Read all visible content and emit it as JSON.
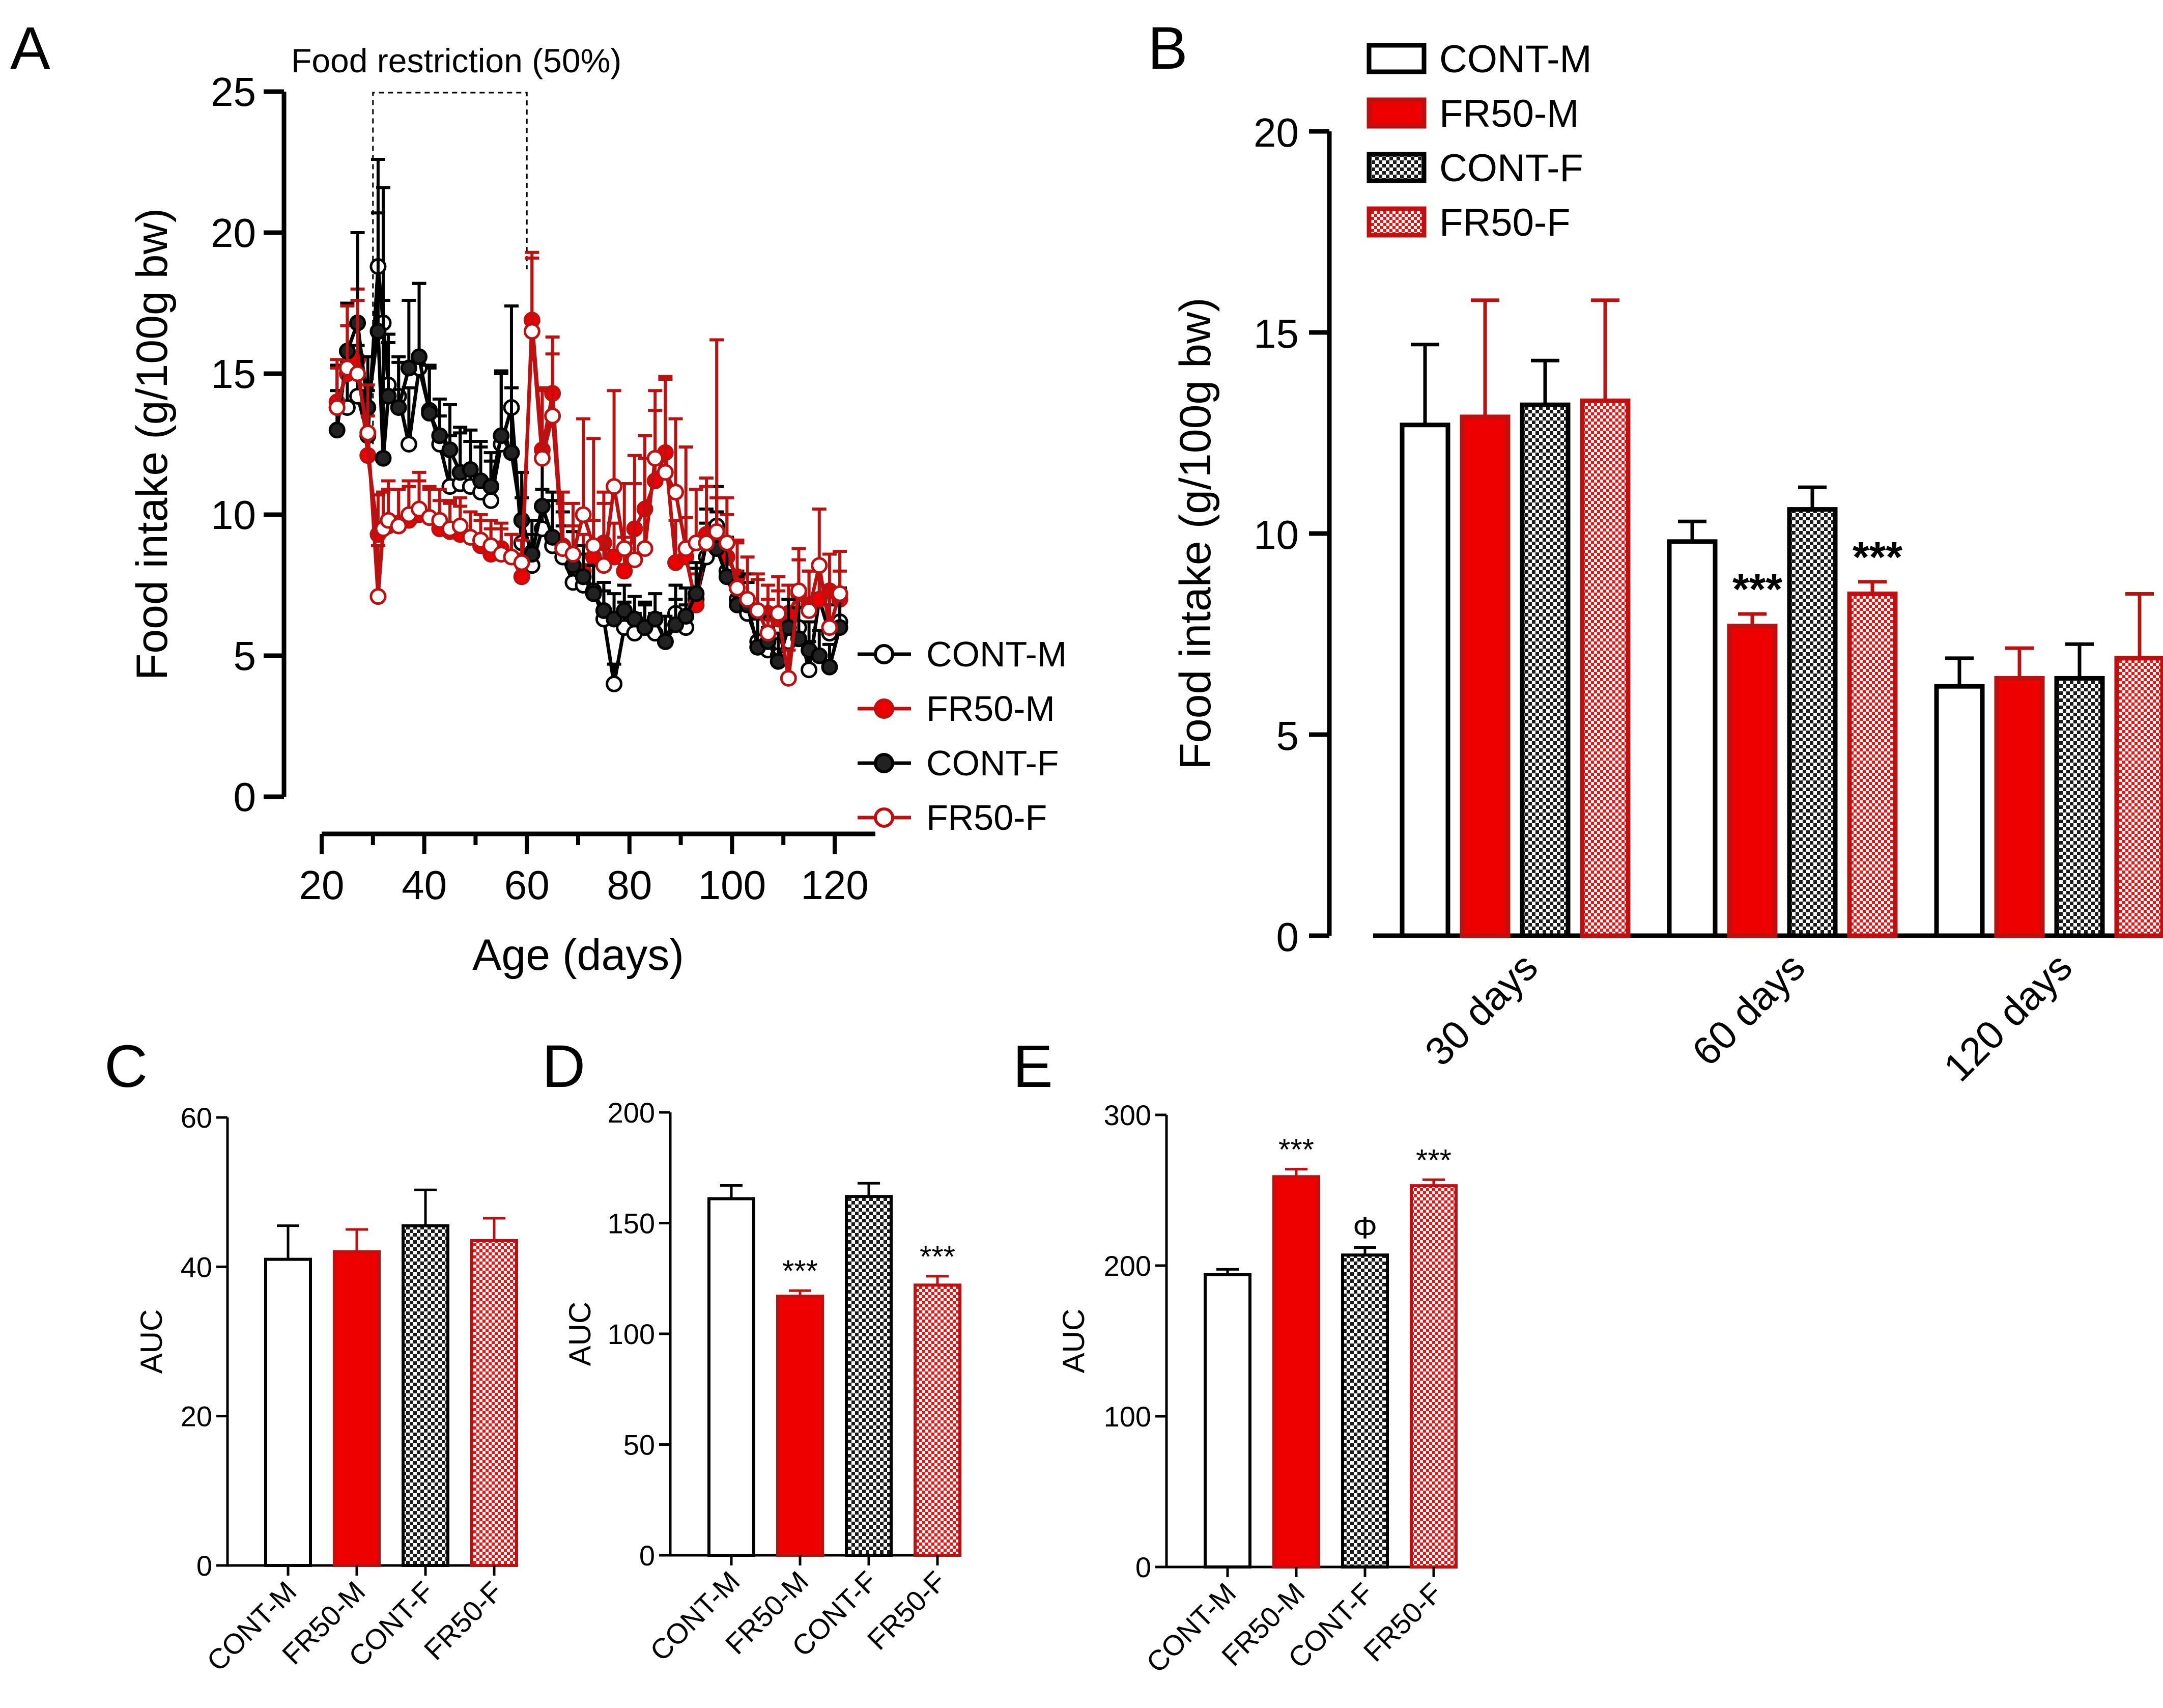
{
  "colors": {
    "black": "#000000",
    "white": "#ffffff",
    "red": "#ee0000",
    "darkred": "#bb1111",
    "check_dark": "#1a1a1a",
    "check_light": "#ffffff",
    "check_red": "#ee1111",
    "check_red_light": "#ffffff"
  },
  "groups": [
    "CONT-M",
    "FR50-M",
    "CONT-F",
    "FR50-F"
  ],
  "chart_data": [
    {
      "panel": "A",
      "type": "line",
      "ylabel": "Food intake (g/100g bw)",
      "xlabel": "Age (days)",
      "ylim": [
        0,
        25
      ],
      "yticks": [
        0,
        5,
        10,
        15,
        20,
        25
      ],
      "xlim": [
        20,
        125
      ],
      "xticks": [
        20,
        40,
        60,
        80,
        100,
        120
      ],
      "annotation": "Food restriction (50%)",
      "restriction_window": [
        30,
        60
      ],
      "legend": [
        "CONT-M",
        "FR50-M",
        "CONT-F",
        "FR50-F"
      ],
      "x": [
        23,
        25,
        27,
        29,
        31,
        32,
        33,
        35,
        37,
        39,
        41,
        43,
        45,
        47,
        49,
        51,
        53,
        55,
        57,
        59,
        61,
        63,
        65,
        67,
        69,
        71,
        73,
        75,
        77,
        79,
        81,
        83,
        85,
        87,
        89,
        91,
        93,
        95,
        97,
        99,
        101,
        103,
        105,
        107,
        109,
        111,
        113,
        115,
        117,
        119,
        121
      ],
      "series": [
        {
          "name": "CONT-M",
          "values": [
            13.8,
            13.8,
            14.2,
            12.8,
            18.8,
            16.8,
            14.6,
            14.2,
            12.5,
            15.2,
            13.7,
            12.5,
            11.0,
            11.1,
            11.0,
            10.8,
            10.5,
            12.5,
            13.8,
            9.0,
            8.2,
            9.5,
            8.9,
            8.5,
            7.6,
            7.5,
            7.3,
            6.3,
            4.0,
            6.0,
            5.8,
            6.0,
            5.8,
            5.5,
            6.5,
            6.0,
            7.0,
            8.5,
            9.6,
            8.0,
            7.0,
            6.5,
            5.5,
            5.2,
            5.0,
            5.5,
            6.0,
            4.5,
            7.0,
            5.8,
            6.2
          ],
          "errors": [
            1.5,
            1.6,
            1.8,
            1.6,
            3.8,
            4.8,
            1.8,
            1.4,
            2.0,
            3.0,
            1.5,
            1.0,
            1.8,
            1.8,
            1.6,
            1.6,
            1.4,
            2.5,
            3.6,
            1.6,
            1.1,
            1.4,
            1.6,
            1.1,
            1.1,
            1.1,
            0.9,
            1.0,
            0.7,
            0.9,
            0.7,
            0.8,
            0.7,
            0.9,
            1.0,
            0.8,
            1.1,
            1.2,
            1.4,
            1.2,
            1.0,
            1.1,
            1.0,
            0.8,
            0.8,
            0.9,
            1.1,
            1.0,
            1.2,
            1.0,
            1.2
          ]
        },
        {
          "name": "FR50-M",
          "values": [
            14.0,
            15.0,
            15.5,
            12.1,
            9.3,
            9.5,
            9.6,
            9.7,
            9.8,
            10.0,
            9.9,
            9.5,
            9.4,
            9.3,
            9.2,
            8.9,
            8.6,
            8.8,
            8.5,
            7.8,
            16.9,
            12.3,
            14.3,
            8.9,
            8.2,
            8.0,
            8.5,
            9.0,
            8.5,
            8.0,
            9.5,
            10.2,
            11.2,
            12.2,
            8.3,
            8.5,
            6.8,
            9.3,
            9.0,
            8.5,
            7.8,
            6.8,
            6.6,
            6.5,
            6.3,
            6.5,
            7.2,
            6.8,
            7.0,
            7.3,
            7.0
          ],
          "errors": [
            1.5,
            1.7,
            2.5,
            1.4,
            1.4,
            1.3,
            1.3,
            1.2,
            1.2,
            1.2,
            1.0,
            1.0,
            1.0,
            1.0,
            0.9,
            0.9,
            0.9,
            0.9,
            0.8,
            0.8,
            2.4,
            2.2,
            2.0,
            1.5,
            1.4,
            1.3,
            1.3,
            1.4,
            1.2,
            1.2,
            1.6,
            1.8,
            2.5,
            2.6,
            1.5,
            1.4,
            1.1,
            1.7,
            1.6,
            1.5,
            1.3,
            1.1,
            1.1,
            1.0,
            1.0,
            1.0,
            1.2,
            1.2,
            1.1,
            1.3,
            1.0
          ]
        },
        {
          "name": "CONT-F",
          "values": [
            13.0,
            15.8,
            16.8,
            13.8,
            16.5,
            12.0,
            14.2,
            13.8,
            15.2,
            15.6,
            13.6,
            12.8,
            12.3,
            11.5,
            11.6,
            11.2,
            11.0,
            12.8,
            12.2,
            9.8,
            8.6,
            10.3,
            9.2,
            8.8,
            8.2,
            7.8,
            7.2,
            6.6,
            6.3,
            6.6,
            6.3,
            6.0,
            6.3,
            5.5,
            6.1,
            6.4,
            7.2,
            9.0,
            8.8,
            7.8,
            6.8,
            6.8,
            5.3,
            5.5,
            4.8,
            6.0,
            5.6,
            5.2,
            5.0,
            4.6,
            6.0
          ],
          "errors": [
            1.4,
            1.7,
            3.2,
            1.8,
            4.2,
            5.6,
            1.9,
            1.6,
            2.4,
            2.6,
            1.7,
            1.3,
            1.6,
            1.6,
            1.4,
            1.4,
            1.2,
            2.3,
            2.3,
            1.7,
            1.2,
            1.8,
            1.6,
            1.3,
            1.2,
            1.1,
            1.0,
            1.0,
            0.9,
            0.9,
            0.8,
            0.9,
            0.9,
            0.9,
            0.9,
            1.0,
            1.1,
            1.2,
            1.3,
            1.2,
            1.0,
            1.1,
            1.0,
            0.9,
            0.8,
            1.0,
            1.1,
            1.0,
            0.9,
            0.8,
            1.1
          ]
        },
        {
          "name": "FR50-F",
          "values": [
            13.8,
            15.2,
            15.0,
            12.9,
            7.1,
            9.5,
            9.8,
            9.6,
            10.0,
            10.2,
            9.9,
            9.8,
            9.5,
            9.6,
            9.2,
            9.1,
            8.9,
            8.6,
            8.5,
            8.3,
            16.5,
            12.0,
            13.5,
            8.8,
            8.6,
            10.0,
            8.9,
            8.2,
            11.0,
            8.8,
            8.4,
            8.8,
            12.0,
            11.5,
            10.8,
            8.8,
            9.0,
            9.0,
            9.4,
            9.0,
            7.4,
            7.0,
            6.6,
            5.8,
            6.5,
            4.2,
            7.3,
            6.6,
            8.2,
            6.0,
            7.2
          ],
          "errors": [
            1.4,
            2.2,
            2.6,
            1.7,
            1.8,
            1.3,
            1.4,
            1.3,
            1.2,
            1.3,
            1.1,
            1.1,
            1.0,
            1.0,
            0.9,
            0.9,
            0.9,
            0.9,
            0.8,
            0.8,
            2.6,
            2.4,
            2.2,
            2.0,
            1.8,
            3.4,
            3.8,
            2.6,
            3.4,
            2.3,
            3.7,
            4.0,
            2.4,
            3.4,
            2.6,
            3.6,
            1.9,
            2.3,
            6.8,
            1.6,
            1.6,
            1.5,
            1.3,
            1.2,
            1.3,
            1.0,
            1.5,
            1.4,
            2.0,
            1.4,
            1.5
          ]
        }
      ]
    },
    {
      "panel": "B",
      "type": "bar",
      "ylabel": "Food intake (g/100g bw)",
      "ylim": [
        0,
        20
      ],
      "yticks": [
        0,
        5,
        10,
        15,
        20
      ],
      "categories": [
        "30 days",
        "60 days",
        "120 days"
      ],
      "legend": [
        "CONT-M",
        "FR50-M",
        "CONT-F",
        "FR50-F"
      ],
      "series": [
        {
          "name": "CONT-M",
          "values": [
            12.7,
            9.8,
            6.2
          ],
          "errors": [
            2.0,
            0.5,
            0.7
          ],
          "marks": [
            "",
            "",
            ""
          ]
        },
        {
          "name": "FR50-M",
          "values": [
            12.9,
            7.7,
            6.4
          ],
          "errors": [
            2.9,
            0.3,
            0.75
          ],
          "marks": [
            "",
            "***",
            ""
          ]
        },
        {
          "name": "CONT-F",
          "values": [
            13.2,
            10.6,
            6.4
          ],
          "errors": [
            1.1,
            0.55,
            0.85
          ],
          "marks": [
            "",
            "",
            ""
          ]
        },
        {
          "name": "FR50-F",
          "values": [
            13.3,
            8.5,
            6.9
          ],
          "errors": [
            2.5,
            0.3,
            1.6
          ],
          "marks": [
            "",
            "***",
            ""
          ]
        }
      ]
    },
    {
      "panel": "C",
      "type": "bar",
      "ylabel": "AUC",
      "ylim": [
        0,
        60
      ],
      "yticks": [
        0,
        20,
        40,
        60
      ],
      "categories": [
        "CONT-M",
        "FR50-M",
        "CONT-F",
        "FR50-F"
      ],
      "values": [
        41.0,
        42.0,
        45.5,
        43.5
      ],
      "errors": [
        4.5,
        3.0,
        4.8,
        3.0
      ],
      "marks": [
        "",
        "",
        "",
        ""
      ]
    },
    {
      "panel": "D",
      "type": "bar",
      "ylabel": "AUC",
      "ylim": [
        0,
        200
      ],
      "yticks": [
        0,
        50,
        100,
        150,
        200
      ],
      "categories": [
        "CONT-M",
        "FR50-M",
        "CONT-F",
        "FR50-F"
      ],
      "values": [
        161,
        117,
        162,
        122
      ],
      "errors": [
        6,
        2.5,
        6,
        4
      ],
      "marks": [
        "",
        "***",
        "",
        "***"
      ]
    },
    {
      "panel": "E",
      "type": "bar",
      "ylabel": "AUC",
      "ylim": [
        0,
        300
      ],
      "yticks": [
        0,
        100,
        200,
        300
      ],
      "categories": [
        "CONT-M",
        "FR50-M",
        "CONT-F",
        "FR50-F"
      ],
      "values": [
        194,
        259,
        207,
        253
      ],
      "errors": [
        3.5,
        5,
        5,
        4
      ],
      "marks": [
        "",
        "***",
        "Φ",
        "***"
      ]
    }
  ]
}
